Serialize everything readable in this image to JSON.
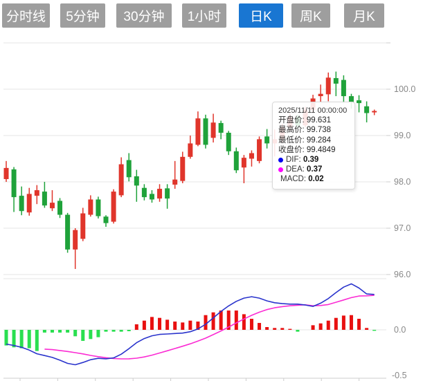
{
  "toolbar": {
    "tabs": [
      {
        "label": "分时线",
        "active": false
      },
      {
        "label": "5分钟",
        "active": false
      },
      {
        "label": "30分钟",
        "active": false
      },
      {
        "label": "1小时",
        "active": false
      },
      {
        "label": "日K",
        "active": true
      },
      {
        "label": "周K",
        "active": false
      },
      {
        "label": "月K",
        "active": false
      }
    ]
  },
  "tooltip": {
    "datetime": "2025/11/11 00:00:00",
    "open_label": "开盘价:",
    "open": "99.631",
    "high_label": "最高价:",
    "high": "99.738",
    "low_label": "最低价:",
    "low": "99.284",
    "close_label": "收盘价:",
    "close": "99.4849",
    "dif_label": "DIF:",
    "dif": "0.39",
    "dea_label": "DEA:",
    "dea": "0.37",
    "macd_label": "MACD:",
    "macd": "0.02"
  },
  "colors": {
    "up": "#e0352b",
    "down": "#1fa23a",
    "bar_up": "#e81010",
    "bar_down": "#2adf50",
    "dif_line": "#2933cc",
    "dea_line": "#fb2bd3",
    "grid": "#e4e4e4",
    "axis_line": "#cccccc",
    "axis_text": "#888888",
    "tab_gray": "#9e9e9e",
    "tab_active": "#1976d2"
  },
  "chart_data": {
    "type": "candlestick+macd",
    "title": "",
    "price_axis": {
      "ticks": [
        100.0,
        99.0,
        98.0,
        97.0,
        96.0
      ],
      "gridlines": [
        101.0,
        100.0,
        99.0,
        98.0,
        97.0,
        96.0
      ],
      "min": 95.9,
      "max": 101.0
    },
    "macd_axis": {
      "ticks": [
        0.0,
        -0.5
      ]
    },
    "candles_ochl": [
      [
        98.06,
        98.3,
        98.45,
        98.0
      ],
      [
        98.27,
        97.67,
        98.32,
        97.35
      ],
      [
        97.7,
        97.37,
        97.9,
        97.28
      ],
      [
        97.34,
        97.74,
        97.87,
        97.27
      ],
      [
        97.7,
        97.82,
        97.93,
        97.52
      ],
      [
        97.79,
        97.49,
        98.0,
        97.44
      ],
      [
        97.43,
        97.55,
        97.82,
        97.37
      ],
      [
        97.59,
        97.29,
        97.65,
        97.22
      ],
      [
        97.29,
        96.54,
        97.33,
        96.47
      ],
      [
        96.54,
        96.96,
        97.0,
        96.12
      ],
      [
        96.77,
        97.32,
        97.44,
        96.72
      ],
      [
        97.29,
        97.62,
        97.71,
        97.25
      ],
      [
        97.62,
        97.26,
        97.68,
        97.21
      ],
      [
        97.25,
        97.11,
        97.28,
        97.03
      ],
      [
        97.14,
        97.79,
        97.84,
        97.1
      ],
      [
        97.71,
        98.38,
        98.53,
        97.67
      ],
      [
        98.47,
        98.1,
        98.62,
        98.01
      ],
      [
        98.12,
        97.92,
        98.26,
        97.57
      ],
      [
        97.87,
        97.67,
        97.95,
        97.6
      ],
      [
        97.74,
        97.62,
        97.82,
        97.55
      ],
      [
        97.64,
        97.85,
        97.95,
        97.57
      ],
      [
        97.86,
        97.64,
        97.95,
        97.42
      ],
      [
        97.94,
        98.05,
        98.45,
        97.85
      ],
      [
        98.02,
        98.54,
        98.65,
        97.97
      ],
      [
        98.54,
        98.83,
        99.0,
        98.5
      ],
      [
        98.8,
        99.37,
        99.52,
        98.77
      ],
      [
        99.37,
        98.8,
        99.45,
        98.72
      ],
      [
        98.95,
        99.28,
        99.47,
        98.85
      ],
      [
        99.27,
        99.06,
        99.32,
        98.92
      ],
      [
        99.06,
        98.66,
        99.1,
        98.58
      ],
      [
        98.66,
        98.25,
        98.74,
        98.19
      ],
      [
        98.31,
        98.52,
        98.58,
        97.97
      ],
      [
        98.5,
        98.62,
        98.68,
        98.33
      ],
      [
        98.45,
        98.92,
        98.98,
        98.4
      ],
      [
        98.98,
        98.83,
        99.14,
        98.72
      ],
      [
        98.83,
        98.92,
        99.13,
        98.55
      ],
      [
        98.92,
        99.18,
        99.25,
        98.85
      ],
      [
        99.18,
        99.4,
        99.48,
        99.1
      ],
      [
        99.4,
        99.22,
        99.45,
        99.15
      ],
      [
        99.22,
        99.55,
        99.62,
        99.18
      ],
      [
        99.55,
        99.8,
        99.88,
        99.5
      ],
      [
        99.85,
        99.9,
        100.1,
        99.72
      ],
      [
        99.89,
        100.25,
        100.36,
        99.74
      ],
      [
        100.24,
        100.12,
        100.38,
        99.85
      ],
      [
        100.2,
        99.85,
        100.3,
        99.7
      ],
      [
        99.85,
        99.72,
        99.9,
        99.58
      ],
      [
        99.76,
        99.7,
        99.87,
        99.5
      ],
      [
        99.631,
        99.4849,
        99.738,
        99.284
      ],
      [
        99.5,
        99.53,
        99.56,
        99.44
      ]
    ],
    "macd": {
      "histogram": [
        -0.17,
        -0.19,
        -0.2,
        -0.2,
        -0.23,
        -0.03,
        -0.03,
        -0.03,
        -0.03,
        -0.07,
        -0.12,
        -0.1,
        -0.08,
        -0.02,
        -0.02,
        -0.02,
        -0.015,
        0.06,
        0.1,
        0.14,
        0.13,
        0.11,
        0.09,
        0.08,
        0.1,
        0.09,
        0.16,
        0.19,
        0.21,
        0.21,
        0.21,
        0.17,
        0.12,
        0.075,
        0.03,
        0.02,
        0.02,
        0.01,
        -0.02,
        0.0,
        0.05,
        0.07,
        0.1,
        0.13,
        0.155,
        0.16,
        0.12,
        0.02,
        -0.01
      ],
      "dif": [
        -0.155,
        -0.17,
        -0.19,
        -0.22,
        -0.26,
        -0.28,
        -0.3,
        -0.33,
        -0.365,
        -0.38,
        -0.355,
        -0.325,
        -0.31,
        -0.315,
        -0.305,
        -0.265,
        -0.205,
        -0.14,
        -0.095,
        -0.065,
        -0.05,
        -0.045,
        -0.04,
        -0.035,
        -0.02,
        0.01,
        0.06,
        0.13,
        0.2,
        0.26,
        0.31,
        0.345,
        0.36,
        0.345,
        0.315,
        0.295,
        0.285,
        0.28,
        0.28,
        0.27,
        0.255,
        0.29,
        0.34,
        0.405,
        0.465,
        0.5,
        0.455,
        0.39,
        0.385
      ],
      "dea": [
        null,
        null,
        null,
        null,
        null,
        -0.21,
        -0.215,
        -0.225,
        -0.235,
        -0.248,
        -0.262,
        -0.278,
        -0.292,
        -0.303,
        -0.312,
        -0.316,
        -0.315,
        -0.308,
        -0.295,
        -0.275,
        -0.252,
        -0.228,
        -0.203,
        -0.178,
        -0.152,
        -0.122,
        -0.09,
        -0.052,
        -0.012,
        0.03,
        0.075,
        0.118,
        0.158,
        0.192,
        0.22,
        0.24,
        0.253,
        0.262,
        0.268,
        0.272,
        0.262,
        0.265,
        0.275,
        0.3,
        0.325,
        0.35,
        0.368,
        0.37,
        0.375
      ]
    },
    "hovered_point": {
      "datetime": "2025/11/11 00:00:00",
      "open": 99.631,
      "high": 99.738,
      "low": 99.284,
      "close": 99.4849,
      "dif": 0.39,
      "dea": 0.37,
      "macd": 0.02
    }
  }
}
